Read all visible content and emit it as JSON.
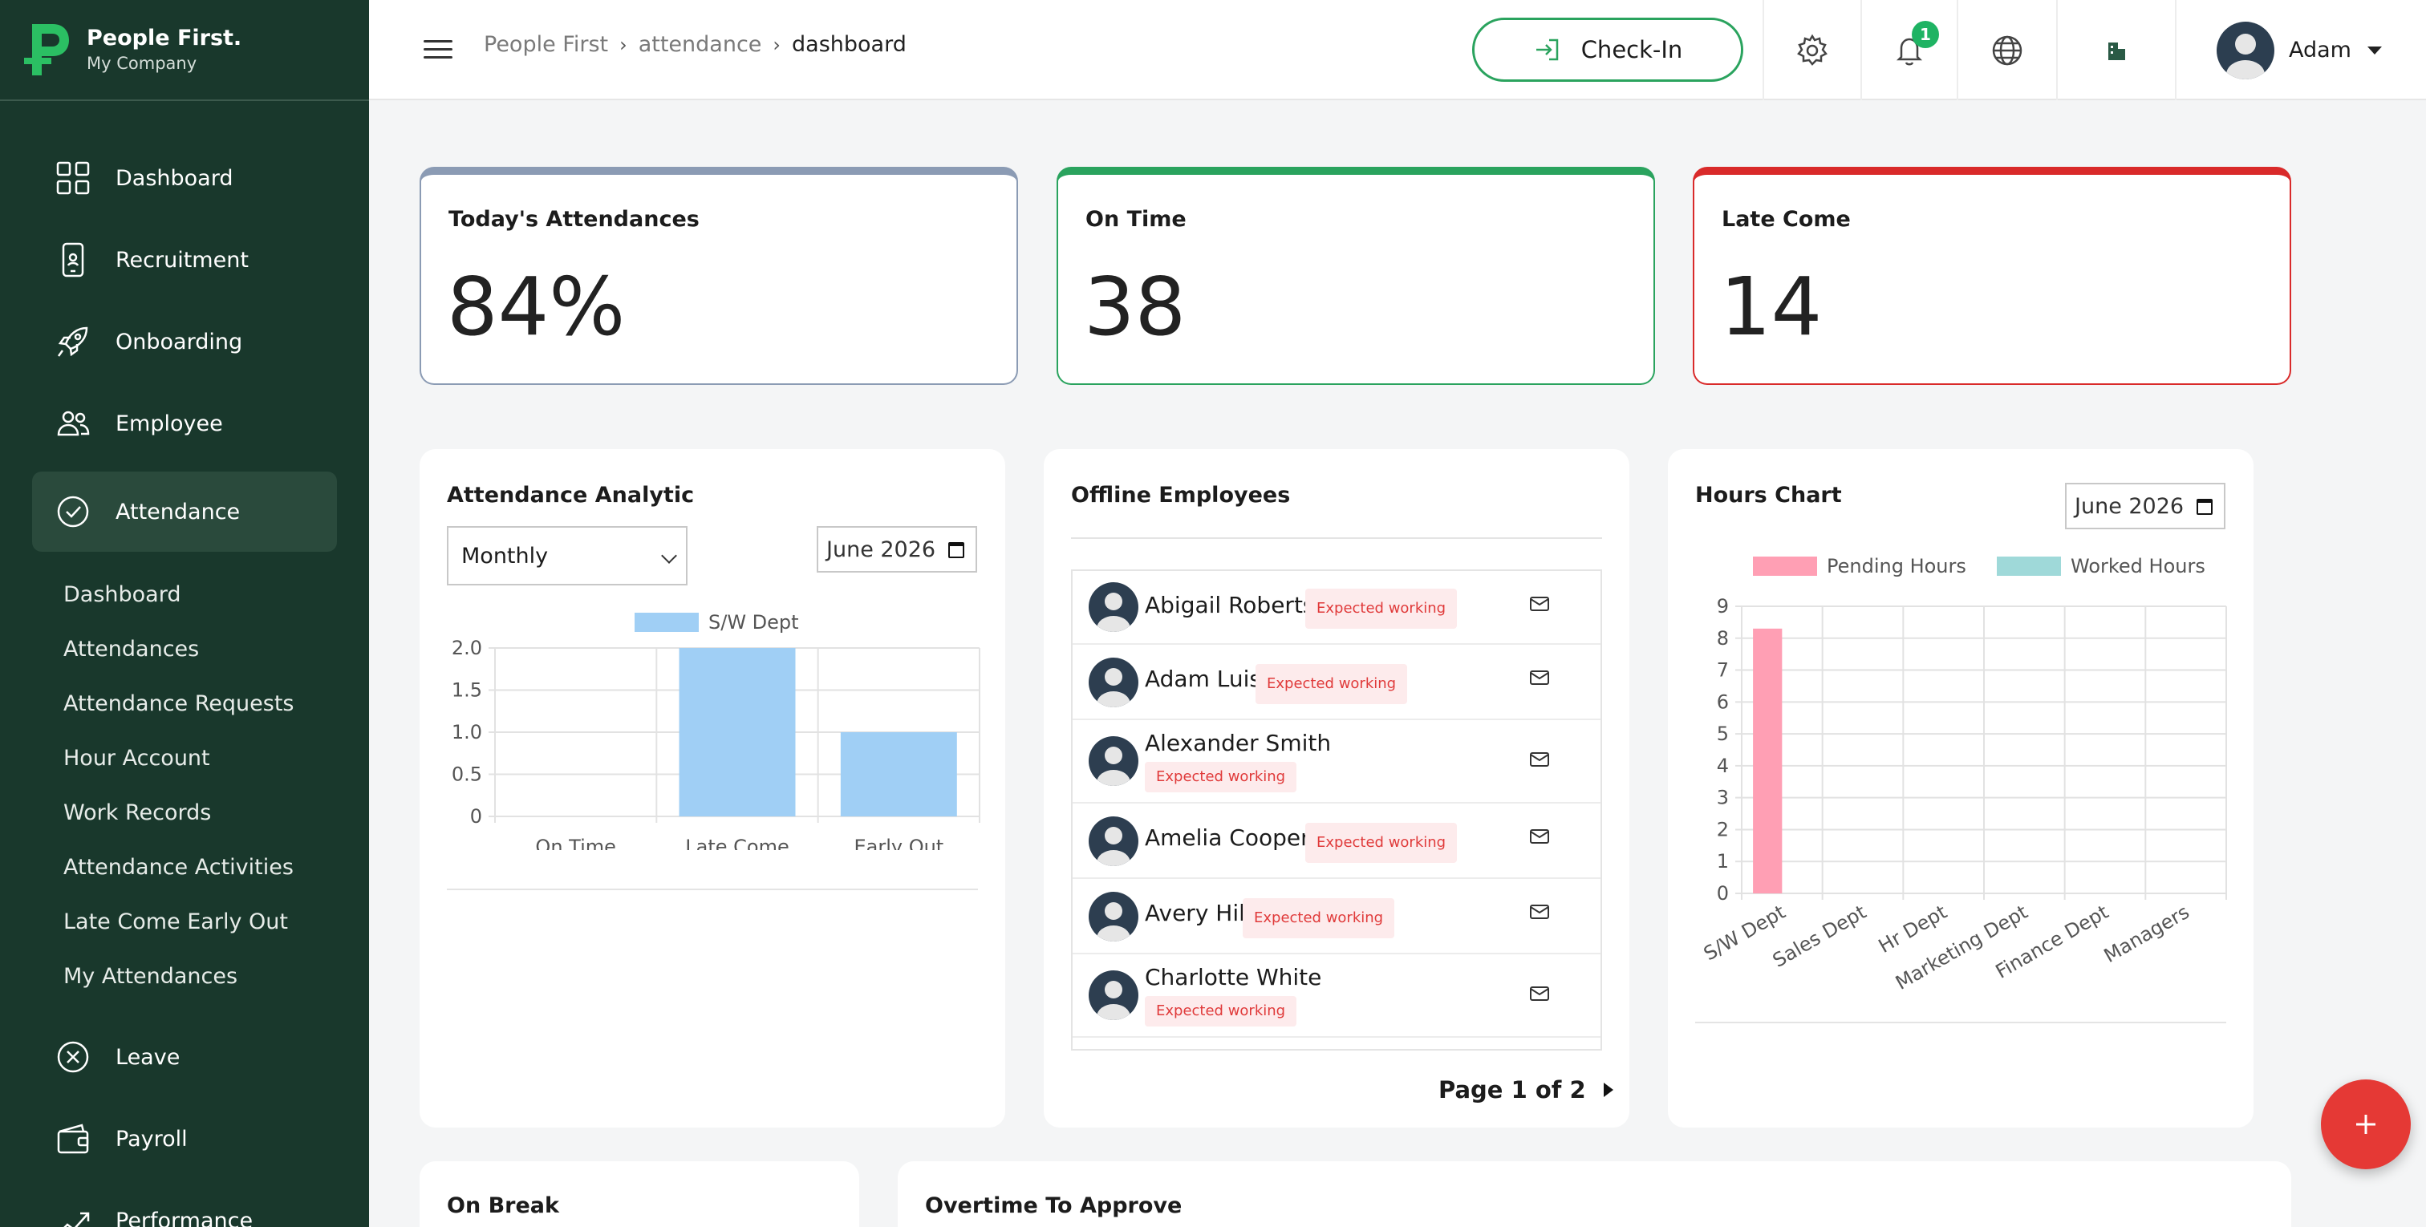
{
  "brand": {
    "name": "People First.",
    "company": "My Company"
  },
  "sidebar": {
    "items": [
      {
        "label": "Dashboard",
        "icon": "grid-icon"
      },
      {
        "label": "Recruitment",
        "icon": "phone-badge-icon"
      },
      {
        "label": "Onboarding",
        "icon": "rocket-icon"
      },
      {
        "label": "Employee",
        "icon": "people-icon"
      },
      {
        "label": "Attendance",
        "icon": "check-circle-icon",
        "active": true
      },
      {
        "label": "Leave",
        "icon": "x-circle-icon"
      },
      {
        "label": "Payroll",
        "icon": "wallet-icon"
      },
      {
        "label": "Performance",
        "icon": "trend-icon"
      }
    ],
    "sub_items": [
      "Dashboard",
      "Attendances",
      "Attendance Requests",
      "Hour Account",
      "Work Records",
      "Attendance Activities",
      "Late Come Early Out",
      "My Attendances"
    ]
  },
  "header": {
    "breadcrumb": [
      "People First",
      "attendance",
      "dashboard"
    ],
    "checkin_label": "Check-In",
    "notification_count": "1",
    "user_name": "Adam"
  },
  "stats": [
    {
      "title": "Today's Attendances",
      "value": "84%",
      "color": "#8b9bb4"
    },
    {
      "title": "On Time",
      "value": "38",
      "color": "#2aa35e"
    },
    {
      "title": "Late Come",
      "value": "14",
      "color": "#d92a2a"
    }
  ],
  "analytic": {
    "title": "Attendance Analytic",
    "period": "Monthly",
    "date": "June 2026"
  },
  "offline": {
    "title": "Offline Employees",
    "employees": [
      {
        "name": "Abigail Roberts",
        "status": "Expected working"
      },
      {
        "name": "Adam Luis",
        "status": "Expected working"
      },
      {
        "name": "Alexander Smith",
        "status": "Expected working"
      },
      {
        "name": "Amelia Cooper",
        "status": "Expected working"
      },
      {
        "name": "Avery Hill",
        "status": "Expected working"
      },
      {
        "name": "Charlotte White",
        "status": "Expected working"
      }
    ],
    "pager": "Page 1 of 2"
  },
  "hours": {
    "title": "Hours Chart",
    "date": "June 2026"
  },
  "bottom": {
    "on_break_title": "On Break",
    "overtime_title": "Overtime To Approve"
  },
  "chart_data": [
    {
      "type": "bar",
      "categories": [
        "On Time",
        "Late Come",
        "Early Out"
      ],
      "series": [
        {
          "name": "S/W Dept",
          "values": [
            0,
            2,
            1
          ],
          "color": "#a0cff5"
        }
      ],
      "title": "",
      "xlabel": "",
      "ylabel": "",
      "ylim": [
        0,
        2
      ],
      "yticks": [
        "0",
        "0.5",
        "1.0",
        "1.5",
        "2.0"
      ],
      "grid": true,
      "legend": "top"
    },
    {
      "type": "bar",
      "categories": [
        "S/W Dept",
        "Sales Dept",
        "Hr Dept",
        "Marketing Dept",
        "Finance Dept",
        "Managers"
      ],
      "series": [
        {
          "name": "Pending Hours",
          "values": [
            8.3,
            0,
            0,
            0,
            0,
            0
          ],
          "color": "#ff9fb4"
        },
        {
          "name": "Worked Hours",
          "values": [
            0,
            0,
            0,
            0,
            0,
            0
          ],
          "color": "#9fd9d9"
        }
      ],
      "title": "",
      "xlabel": "",
      "ylabel": "",
      "ylim": [
        0,
        9
      ],
      "yticks": [
        "0",
        "1",
        "2",
        "3",
        "4",
        "5",
        "6",
        "7",
        "8",
        "9"
      ],
      "grid": true,
      "legend": "top"
    }
  ]
}
